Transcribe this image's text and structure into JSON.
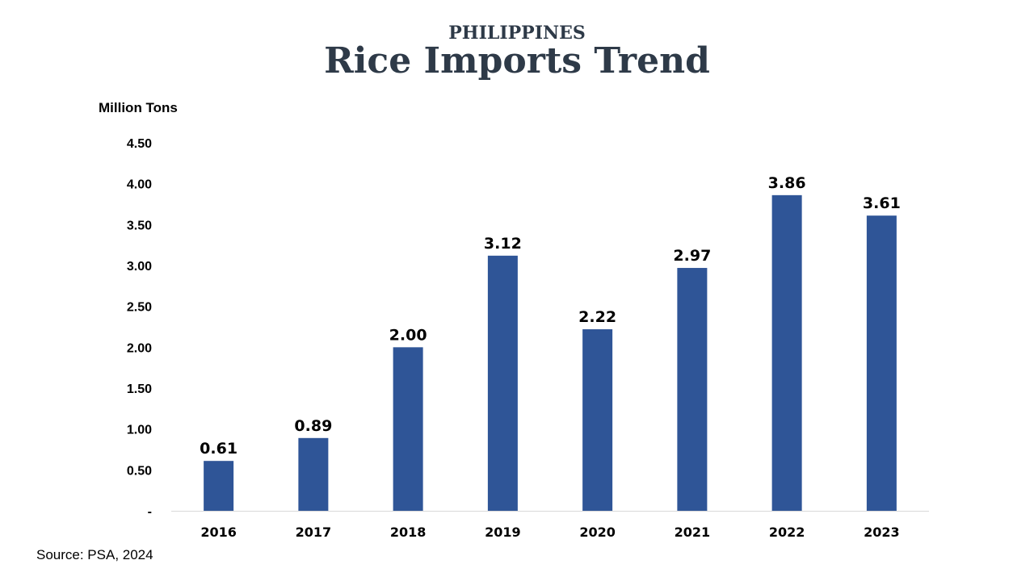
{
  "header": {
    "supertitle": "PHILIPPINES",
    "title": "Rice Imports Trend"
  },
  "footer": {
    "source": "Source: PSA, 2024"
  },
  "colors": {
    "bar": "#2f5597",
    "axis_line": "#d9d9d9",
    "text": "#000000",
    "title": "#2e3a48"
  },
  "chart_data": {
    "type": "bar",
    "title": "Rice Imports Trend",
    "ylabel": "Million Tons",
    "xlabel": "",
    "categories": [
      "2016",
      "2017",
      "2018",
      "2019",
      "2020",
      "2021",
      "2022",
      "2023"
    ],
    "values": [
      0.61,
      0.89,
      2.0,
      3.12,
      2.22,
      2.97,
      3.86,
      3.61
    ],
    "data_labels": [
      "0.61",
      "0.89",
      "2.00",
      "3.12",
      "2.22",
      "2.97",
      "3.86",
      "3.61"
    ],
    "ylim": [
      0,
      4.5
    ],
    "yticks": [
      0,
      0.5,
      1.0,
      1.5,
      2.0,
      2.5,
      3.0,
      3.5,
      4.0,
      4.5
    ],
    "ytick_labels": [
      "-",
      "0.50",
      "1.00",
      "1.50",
      "2.00",
      "2.50",
      "3.00",
      "3.50",
      "4.00",
      "4.50"
    ],
    "grid": false,
    "legend": "none"
  }
}
